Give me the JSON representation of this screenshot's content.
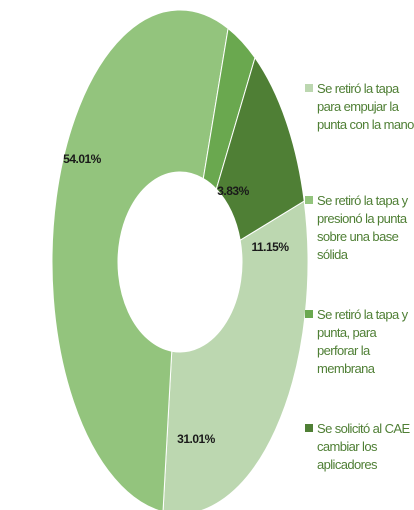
{
  "chart_data": {
    "type": "donut",
    "categories": [
      "Se retiró la tapa para empujar la punta con la mano",
      "Se retiró la tapa y presionó la punta sobre una base sólida",
      "Se retiró la tapa y punta, para perforar la membrana",
      "Se solicitó al CAE cambiar los aplicadores"
    ],
    "values": [
      31.01,
      54.01,
      3.83,
      11.15
    ],
    "value_labels": [
      "31.01%",
      "54.01%",
      "3.83%",
      "11.15%"
    ],
    "colors": [
      "#bcd7b0",
      "#93c47d",
      "#6aa84f",
      "#4f7f35"
    ],
    "legend": "right"
  }
}
